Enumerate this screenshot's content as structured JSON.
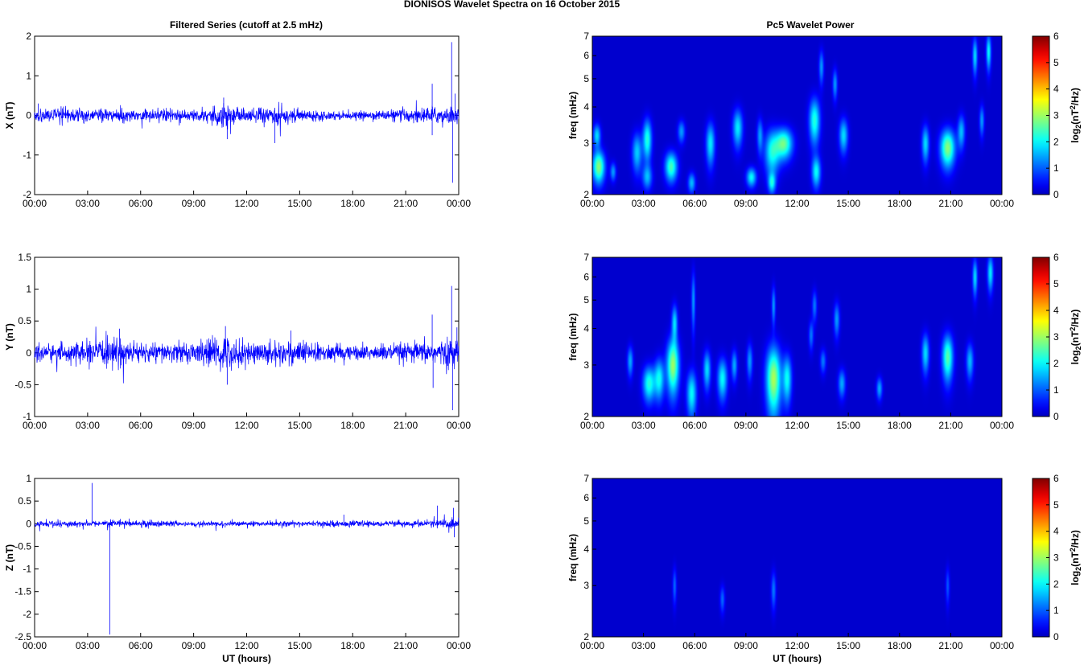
{
  "figure": {
    "title": "DIONISOS Wavelet Spectra on 16 October   2015",
    "left_title": "Filtered Series (cutoff at 2.5 mHz)",
    "right_title": "Pc5 Wavelet Power"
  },
  "colors": {
    "series_line": "#0000ff",
    "heatmap_background": "#00008f",
    "colormap": [
      "#00008f",
      "#0000ff",
      "#00ffff",
      "#ffff00",
      "#ff0000",
      "#800000"
    ]
  },
  "chart_data": [
    {
      "type": "line",
      "panel": "x-series",
      "ylabel": "X (nT)",
      "xlabel": "",
      "x_ticks": [
        "00:00",
        "03:00",
        "06:00",
        "09:00",
        "12:00",
        "15:00",
        "18:00",
        "21:00",
        "00:00"
      ],
      "xlim_hours": [
        0,
        24
      ],
      "y_ticks": [
        "-2",
        "-1",
        "0",
        "1",
        "2"
      ],
      "ylim": [
        -2,
        2
      ],
      "noise_envelope": [
        [
          0,
          0.15
        ],
        [
          2,
          0.15
        ],
        [
          4,
          0.15
        ],
        [
          6,
          0.13
        ],
        [
          8,
          0.14
        ],
        [
          9.5,
          0.15
        ],
        [
          10.8,
          0.3
        ],
        [
          12,
          0.15
        ],
        [
          13.5,
          0.22
        ],
        [
          15,
          0.13
        ],
        [
          18,
          0.08
        ],
        [
          20,
          0.12
        ],
        [
          21,
          0.15
        ],
        [
          22,
          0.18
        ],
        [
          24,
          0.2
        ]
      ],
      "spikes": [
        [
          0.2,
          0.3
        ],
        [
          10.7,
          0.45
        ],
        [
          10.9,
          -0.6
        ],
        [
          13.6,
          -0.7
        ],
        [
          22.5,
          0.8
        ],
        [
          23.6,
          1.85
        ],
        [
          23.65,
          -1.7
        ],
        [
          23.8,
          0.55
        ],
        [
          22.5,
          -0.5
        ]
      ]
    },
    {
      "type": "line",
      "panel": "y-series",
      "ylabel": "Y (nT)",
      "xlabel": "",
      "x_ticks": [
        "00:00",
        "03:00",
        "06:00",
        "09:00",
        "12:00",
        "15:00",
        "18:00",
        "21:00",
        "00:00"
      ],
      "xlim_hours": [
        0,
        24
      ],
      "y_ticks": [
        "-1",
        "-0.5",
        "0",
        "0.5",
        "1",
        "1.5"
      ],
      "ylim": [
        -1,
        1.5
      ],
      "noise_envelope": [
        [
          0,
          0.12
        ],
        [
          2,
          0.13
        ],
        [
          4.8,
          0.2
        ],
        [
          6,
          0.13
        ],
        [
          9,
          0.14
        ],
        [
          10.8,
          0.25
        ],
        [
          12,
          0.15
        ],
        [
          14.5,
          0.18
        ],
        [
          16,
          0.13
        ],
        [
          18,
          0.1
        ],
        [
          20,
          0.12
        ],
        [
          22,
          0.15
        ],
        [
          24,
          0.2
        ]
      ],
      "spikes": [
        [
          4.8,
          0.38
        ],
        [
          10.8,
          0.42
        ],
        [
          10.9,
          -0.5
        ],
        [
          14.5,
          0.35
        ],
        [
          22.5,
          0.6
        ],
        [
          22.55,
          -0.55
        ],
        [
          23.6,
          1.05
        ],
        [
          23.65,
          -0.9
        ],
        [
          23.9,
          0.4
        ]
      ]
    },
    {
      "type": "line",
      "panel": "z-series",
      "ylabel": "Z (nT)",
      "xlabel": "UT (hours)",
      "x_ticks": [
        "00:00",
        "03:00",
        "06:00",
        "09:00",
        "12:00",
        "15:00",
        "18:00",
        "21:00",
        "00:00"
      ],
      "xlim_hours": [
        0,
        24
      ],
      "y_ticks": [
        "-2.5",
        "-2",
        "-1.5",
        "-1",
        "-0.5",
        "0",
        "0.5",
        "1"
      ],
      "ylim": [
        -2.5,
        1
      ],
      "noise_envelope": [
        [
          0,
          0.06
        ],
        [
          3,
          0.06
        ],
        [
          6,
          0.07
        ],
        [
          9,
          0.05
        ],
        [
          12,
          0.05
        ],
        [
          17,
          0.06
        ],
        [
          20,
          0.05
        ],
        [
          22,
          0.07
        ],
        [
          24,
          0.1
        ]
      ],
      "spikes": [
        [
          3.25,
          0.9
        ],
        [
          4.25,
          -2.45
        ],
        [
          17.5,
          0.2
        ],
        [
          22.8,
          0.4
        ],
        [
          23.7,
          0.35
        ],
        [
          23.75,
          -0.3
        ]
      ]
    },
    {
      "type": "heatmap",
      "panel": "x-wavelet",
      "ylabel": "freq (mHz)",
      "xlabel": "",
      "y_scale": "log",
      "ylim": [
        2,
        7
      ],
      "y_ticks": [
        "2",
        "3",
        "4",
        "5",
        "6",
        "7"
      ],
      "x_ticks": [
        "00:00",
        "03:00",
        "06:00",
        "09:00",
        "12:00",
        "15:00",
        "18:00",
        "21:00",
        "00:00"
      ],
      "xlim_hours": [
        0,
        24
      ],
      "colorbar": {
        "label": "log2(nT^2/Hz)",
        "ticks": [
          "0",
          "1",
          "2",
          "3",
          "4",
          "5",
          "6"
        ],
        "range": [
          0,
          6
        ]
      },
      "blobs": [
        [
          0.35,
          2.5,
          0.25,
          0.22,
          2.6
        ],
        [
          0.25,
          3.2,
          0.15,
          0.2,
          1.6
        ],
        [
          1.2,
          2.4,
          0.12,
          0.12,
          1.2
        ],
        [
          2.6,
          2.8,
          0.2,
          0.3,
          1.5
        ],
        [
          3.2,
          3.1,
          0.18,
          0.35,
          2.0
        ],
        [
          3.2,
          2.3,
          0.2,
          0.15,
          1.3
        ],
        [
          4.6,
          2.5,
          0.25,
          0.2,
          2.2
        ],
        [
          5.2,
          3.3,
          0.15,
          0.2,
          1.2
        ],
        [
          5.8,
          2.2,
          0.15,
          0.12,
          1.4
        ],
        [
          6.9,
          3.0,
          0.18,
          0.35,
          1.7
        ],
        [
          8.5,
          3.4,
          0.2,
          0.35,
          1.7
        ],
        [
          9.3,
          2.3,
          0.2,
          0.12,
          1.8
        ],
        [
          9.8,
          3.2,
          0.12,
          0.3,
          1.2
        ],
        [
          10.5,
          2.8,
          0.3,
          0.35,
          1.8
        ],
        [
          11.2,
          3.0,
          0.35,
          0.25,
          2.4
        ],
        [
          10.5,
          2.2,
          0.15,
          0.12,
          1.6
        ],
        [
          13.0,
          3.6,
          0.22,
          0.45,
          2.0
        ],
        [
          13.1,
          2.4,
          0.18,
          0.2,
          1.8
        ],
        [
          13.4,
          5.5,
          0.1,
          0.5,
          1.2
        ],
        [
          14.2,
          4.8,
          0.1,
          0.4,
          1.2
        ],
        [
          14.7,
          3.2,
          0.18,
          0.3,
          1.6
        ],
        [
          19.5,
          3.0,
          0.15,
          0.3,
          1.6
        ],
        [
          20.8,
          2.9,
          0.3,
          0.3,
          2.6
        ],
        [
          21.6,
          3.3,
          0.15,
          0.3,
          1.4
        ],
        [
          22.4,
          6.0,
          0.1,
          0.6,
          1.6
        ],
        [
          23.2,
          6.2,
          0.1,
          0.6,
          1.8
        ],
        [
          22.8,
          3.6,
          0.1,
          0.3,
          1.2
        ]
      ]
    },
    {
      "type": "heatmap",
      "panel": "y-wavelet",
      "ylabel": "freq (mHz)",
      "xlabel": "",
      "y_scale": "log",
      "ylim": [
        2,
        7
      ],
      "y_ticks": [
        "2",
        "3",
        "4",
        "5",
        "6",
        "7"
      ],
      "x_ticks": [
        "00:00",
        "03:00",
        "06:00",
        "09:00",
        "12:00",
        "15:00",
        "18:00",
        "21:00",
        "00:00"
      ],
      "xlim_hours": [
        0,
        24
      ],
      "colorbar": {
        "label": "log2(nT^2/Hz)",
        "ticks": [
          "0",
          "1",
          "2",
          "3",
          "4",
          "5",
          "6"
        ],
        "range": [
          0,
          6
        ]
      },
      "blobs": [
        [
          2.2,
          3.1,
          0.12,
          0.25,
          1.3
        ],
        [
          3.3,
          2.6,
          0.25,
          0.25,
          2.0
        ],
        [
          3.9,
          2.7,
          0.2,
          0.3,
          1.8
        ],
        [
          4.7,
          3.0,
          0.25,
          0.45,
          2.7
        ],
        [
          4.8,
          4.2,
          0.12,
          0.4,
          1.6
        ],
        [
          5.8,
          2.4,
          0.2,
          0.3,
          1.8
        ],
        [
          5.9,
          5.0,
          0.08,
          0.8,
          1.2
        ],
        [
          6.7,
          2.9,
          0.15,
          0.3,
          1.6
        ],
        [
          7.6,
          2.7,
          0.2,
          0.3,
          1.8
        ],
        [
          8.3,
          3.0,
          0.12,
          0.25,
          1.3
        ],
        [
          9.2,
          3.1,
          0.12,
          0.3,
          1.2
        ],
        [
          10.6,
          2.7,
          0.3,
          0.5,
          2.8
        ],
        [
          11.4,
          2.7,
          0.18,
          0.35,
          1.8
        ],
        [
          10.6,
          4.8,
          0.08,
          0.5,
          1.2
        ],
        [
          12.8,
          3.8,
          0.1,
          0.3,
          1.0
        ],
        [
          13.0,
          4.8,
          0.1,
          0.4,
          1.0
        ],
        [
          13.5,
          3.1,
          0.12,
          0.2,
          1.0
        ],
        [
          14.3,
          4.3,
          0.12,
          0.4,
          1.2
        ],
        [
          14.6,
          2.6,
          0.15,
          0.2,
          1.3
        ],
        [
          16.8,
          2.5,
          0.12,
          0.15,
          1.3
        ],
        [
          19.5,
          3.3,
          0.15,
          0.35,
          1.6
        ],
        [
          20.8,
          3.2,
          0.22,
          0.4,
          2.3
        ],
        [
          22.1,
          3.1,
          0.15,
          0.3,
          1.4
        ],
        [
          22.4,
          6.0,
          0.1,
          0.6,
          1.6
        ],
        [
          23.3,
          6.2,
          0.12,
          0.6,
          1.7
        ]
      ]
    },
    {
      "type": "heatmap",
      "panel": "z-wavelet",
      "ylabel": "freq (mHz)",
      "xlabel": "UT (hours)",
      "y_scale": "log",
      "ylim": [
        2,
        7
      ],
      "y_ticks": [
        "2",
        "3",
        "4",
        "5",
        "6",
        "7"
      ],
      "x_ticks": [
        "00:00",
        "03:00",
        "06:00",
        "09:00",
        "12:00",
        "15:00",
        "18:00",
        "21:00",
        "00:00"
      ],
      "xlim_hours": [
        0,
        24
      ],
      "colorbar": {
        "label": "log2(nT^2/Hz)",
        "ticks": [
          "0",
          "1",
          "2",
          "3",
          "4",
          "5",
          "6"
        ],
        "range": [
          0,
          6
        ]
      },
      "blobs": [
        [
          4.8,
          3.0,
          0.08,
          0.3,
          0.9
        ],
        [
          7.6,
          2.7,
          0.1,
          0.2,
          0.9
        ],
        [
          10.6,
          2.9,
          0.1,
          0.3,
          1.0
        ],
        [
          20.8,
          3.0,
          0.08,
          0.3,
          0.8
        ]
      ]
    }
  ]
}
